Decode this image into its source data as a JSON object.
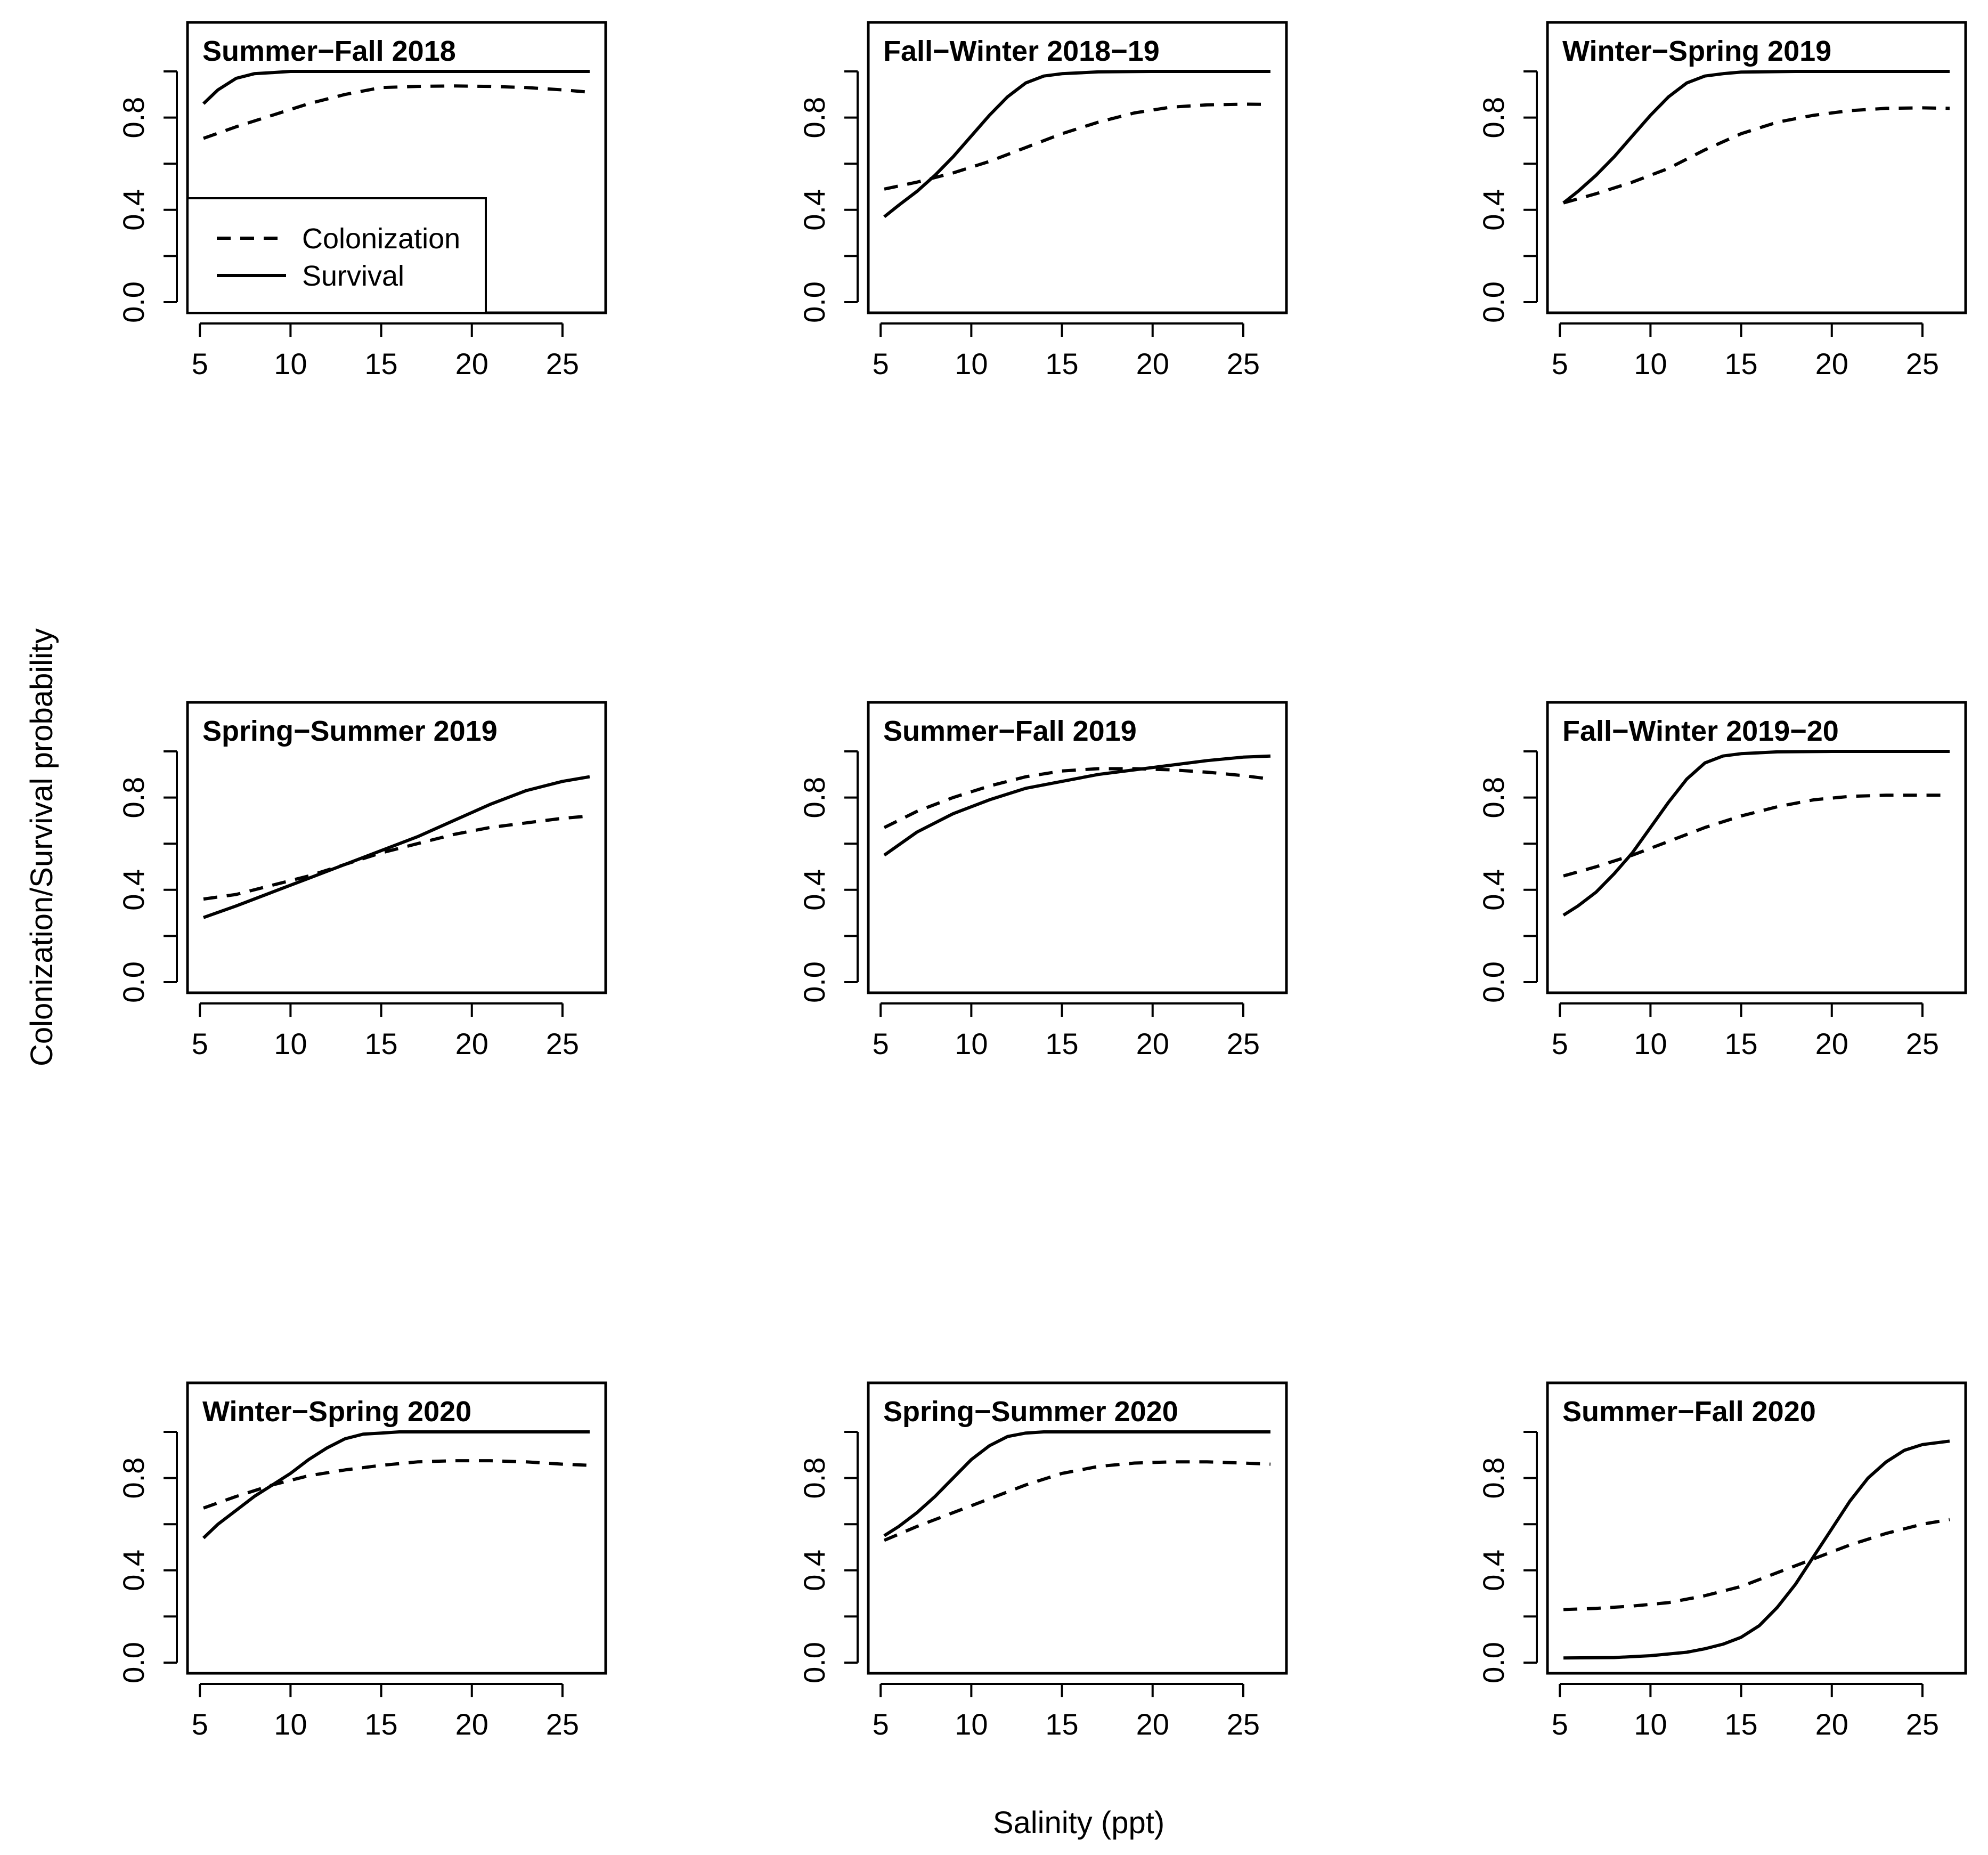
{
  "figure": {
    "xlabel": "Salinity (ppt)",
    "ylabel": "Colonization/Survival probability"
  },
  "legend": {
    "entries": [
      {
        "label": "Colonization",
        "style": "dashed"
      },
      {
        "label": "Survival",
        "style": "solid"
      }
    ]
  },
  "colors": {
    "line": "#000000",
    "background": "#ffffff"
  },
  "chart_data": [
    {
      "type": "line",
      "title": "Summer−Fall 2018",
      "xlabel": "",
      "ylabel": "",
      "xlim": [
        5.2,
        26.5
      ],
      "ylim": [
        0,
        1
      ],
      "xticks": [
        "5",
        "10",
        "15",
        "20",
        "25"
      ],
      "yticks": [
        "0.0",
        "0.4",
        "0.8"
      ],
      "grid": false,
      "legend": "bottom-left",
      "series": [
        {
          "name": "Colonization",
          "style": "dashed",
          "x": [
            5.2,
            7,
            9,
            11,
            13,
            15,
            17,
            19,
            21,
            23,
            25,
            26.5
          ],
          "y": [
            0.71,
            0.76,
            0.81,
            0.86,
            0.9,
            0.93,
            0.935,
            0.937,
            0.935,
            0.93,
            0.92,
            0.91
          ]
        },
        {
          "name": "Survival",
          "style": "solid",
          "x": [
            5.2,
            6,
            7,
            8,
            9,
            10,
            12,
            15,
            20,
            26.5
          ],
          "y": [
            0.86,
            0.92,
            0.97,
            0.99,
            0.995,
            1.0,
            1.0,
            1.0,
            1.0,
            1.0
          ]
        }
      ]
    },
    {
      "type": "line",
      "title": "Fall−Winter 2018−19",
      "xlabel": "",
      "ylabel": "",
      "xlim": [
        5.2,
        26.5
      ],
      "ylim": [
        0,
        1
      ],
      "xticks": [
        "5",
        "10",
        "15",
        "20",
        "25"
      ],
      "yticks": [
        "0.0",
        "0.4",
        "0.8"
      ],
      "grid": false,
      "series": [
        {
          "name": "Colonization",
          "style": "dashed",
          "x": [
            5.2,
            7,
            9,
            11,
            13,
            15,
            17,
            19,
            21,
            23,
            25,
            26.5
          ],
          "y": [
            0.49,
            0.52,
            0.56,
            0.61,
            0.67,
            0.73,
            0.78,
            0.82,
            0.845,
            0.855,
            0.858,
            0.857
          ]
        },
        {
          "name": "Survival",
          "style": "solid",
          "x": [
            5.2,
            6,
            7,
            8,
            9,
            10,
            11,
            12,
            13,
            14,
            15,
            17,
            20,
            26.5
          ],
          "y": [
            0.37,
            0.42,
            0.48,
            0.55,
            0.63,
            0.72,
            0.81,
            0.89,
            0.95,
            0.98,
            0.99,
            0.998,
            1.0,
            1.0
          ]
        }
      ]
    },
    {
      "type": "line",
      "title": "Winter−Spring 2019",
      "xlabel": "",
      "ylabel": "",
      "xlim": [
        5.2,
        26.5
      ],
      "ylim": [
        0,
        1
      ],
      "xticks": [
        "5",
        "10",
        "15",
        "20",
        "25"
      ],
      "yticks": [
        "0.0",
        "0.4",
        "0.8"
      ],
      "grid": false,
      "series": [
        {
          "name": "Colonization",
          "style": "dashed",
          "x": [
            5.2,
            7,
            9,
            11,
            13,
            15,
            17,
            19,
            21,
            23,
            25,
            26.5
          ],
          "y": [
            0.43,
            0.47,
            0.52,
            0.58,
            0.66,
            0.73,
            0.78,
            0.81,
            0.83,
            0.84,
            0.842,
            0.84
          ]
        },
        {
          "name": "Survival",
          "style": "solid",
          "x": [
            5.2,
            6,
            7,
            8,
            9,
            10,
            11,
            12,
            13,
            14,
            15,
            18,
            22,
            26.5
          ],
          "y": [
            0.43,
            0.48,
            0.55,
            0.63,
            0.72,
            0.81,
            0.89,
            0.95,
            0.98,
            0.99,
            0.997,
            1.0,
            1.0,
            1.0
          ]
        }
      ]
    },
    {
      "type": "line",
      "title": "Spring−Summer 2019",
      "xlabel": "",
      "ylabel": "",
      "xlim": [
        5.2,
        26.5
      ],
      "ylim": [
        0,
        1
      ],
      "xticks": [
        "5",
        "10",
        "15",
        "20",
        "25"
      ],
      "yticks": [
        "0.0",
        "0.4",
        "0.8"
      ],
      "grid": false,
      "series": [
        {
          "name": "Colonization",
          "style": "dashed",
          "x": [
            5.2,
            7,
            9,
            11,
            13,
            15,
            17,
            19,
            21,
            23,
            25,
            26.5
          ],
          "y": [
            0.36,
            0.38,
            0.42,
            0.46,
            0.51,
            0.56,
            0.6,
            0.64,
            0.67,
            0.69,
            0.71,
            0.72
          ]
        },
        {
          "name": "Survival",
          "style": "solid",
          "x": [
            5.2,
            7,
            9,
            11,
            13,
            15,
            17,
            19,
            21,
            23,
            25,
            26.5
          ],
          "y": [
            0.28,
            0.33,
            0.39,
            0.45,
            0.51,
            0.57,
            0.63,
            0.7,
            0.77,
            0.83,
            0.87,
            0.89
          ]
        }
      ]
    },
    {
      "type": "line",
      "title": "Summer−Fall 2019",
      "xlabel": "",
      "ylabel": "",
      "xlim": [
        5.2,
        26.5
      ],
      "ylim": [
        0,
        1
      ],
      "xticks": [
        "5",
        "10",
        "15",
        "20",
        "25"
      ],
      "yticks": [
        "0.0",
        "0.4",
        "0.8"
      ],
      "grid": false,
      "series": [
        {
          "name": "Colonization",
          "style": "dashed",
          "x": [
            5.2,
            7,
            9,
            11,
            13,
            15,
            17,
            19,
            21,
            23,
            25,
            26.5
          ],
          "y": [
            0.67,
            0.74,
            0.8,
            0.85,
            0.89,
            0.915,
            0.925,
            0.925,
            0.92,
            0.91,
            0.895,
            0.88
          ]
        },
        {
          "name": "Survival",
          "style": "solid",
          "x": [
            5.2,
            7,
            9,
            11,
            13,
            15,
            17,
            19,
            21,
            23,
            25,
            26.5
          ],
          "y": [
            0.55,
            0.65,
            0.73,
            0.79,
            0.84,
            0.87,
            0.9,
            0.92,
            0.94,
            0.96,
            0.975,
            0.98
          ]
        }
      ]
    },
    {
      "type": "line",
      "title": "Fall−Winter 2019−20",
      "xlabel": "",
      "ylabel": "",
      "xlim": [
        5.2,
        26.5
      ],
      "ylim": [
        0,
        1
      ],
      "xticks": [
        "5",
        "10",
        "15",
        "20",
        "25"
      ],
      "yticks": [
        "0.0",
        "0.4",
        "0.8"
      ],
      "grid": false,
      "series": [
        {
          "name": "Colonization",
          "style": "dashed",
          "x": [
            5.2,
            7,
            9,
            11,
            13,
            15,
            17,
            19,
            21,
            23,
            25,
            26.5
          ],
          "y": [
            0.46,
            0.5,
            0.55,
            0.61,
            0.67,
            0.72,
            0.76,
            0.79,
            0.805,
            0.81,
            0.81,
            0.81
          ]
        },
        {
          "name": "Survival",
          "style": "solid",
          "x": [
            5.2,
            6,
            7,
            8,
            9,
            10,
            11,
            12,
            13,
            14,
            15,
            17,
            20,
            26.5
          ],
          "y": [
            0.29,
            0.33,
            0.39,
            0.47,
            0.56,
            0.67,
            0.78,
            0.88,
            0.95,
            0.98,
            0.99,
            0.998,
            1.0,
            1.0
          ]
        }
      ]
    },
    {
      "type": "line",
      "title": "Winter−Spring 2020",
      "xlabel": "",
      "ylabel": "",
      "xlim": [
        5.2,
        26.5
      ],
      "ylim": [
        0,
        1
      ],
      "xticks": [
        "5",
        "10",
        "15",
        "20",
        "25"
      ],
      "yticks": [
        "0.0",
        "0.4",
        "0.8"
      ],
      "grid": false,
      "series": [
        {
          "name": "Colonization",
          "style": "dashed",
          "x": [
            5.2,
            7,
            9,
            11,
            13,
            15,
            17,
            19,
            21,
            23,
            25,
            26.5
          ],
          "y": [
            0.67,
            0.72,
            0.77,
            0.81,
            0.835,
            0.855,
            0.87,
            0.875,
            0.875,
            0.87,
            0.86,
            0.855
          ]
        },
        {
          "name": "Survival",
          "style": "solid",
          "x": [
            5.2,
            6,
            7,
            8,
            9,
            10,
            11,
            12,
            13,
            14,
            15,
            16,
            18,
            22,
            26.5
          ],
          "y": [
            0.54,
            0.6,
            0.66,
            0.72,
            0.77,
            0.82,
            0.88,
            0.93,
            0.97,
            0.99,
            0.995,
            1.0,
            1.0,
            1.0,
            1.0
          ]
        }
      ]
    },
    {
      "type": "line",
      "title": "Spring−Summer 2020",
      "xlabel": "",
      "ylabel": "",
      "xlim": [
        5.2,
        26.5
      ],
      "ylim": [
        0,
        1
      ],
      "xticks": [
        "5",
        "10",
        "15",
        "20",
        "25"
      ],
      "yticks": [
        "0.0",
        "0.4",
        "0.8"
      ],
      "grid": false,
      "series": [
        {
          "name": "Colonization",
          "style": "dashed",
          "x": [
            5.2,
            7,
            9,
            11,
            13,
            15,
            17,
            19,
            21,
            23,
            25,
            26.5
          ],
          "y": [
            0.53,
            0.59,
            0.65,
            0.71,
            0.77,
            0.82,
            0.85,
            0.865,
            0.87,
            0.87,
            0.865,
            0.86
          ]
        },
        {
          "name": "Survival",
          "style": "solid",
          "x": [
            5.2,
            6,
            7,
            8,
            9,
            10,
            11,
            12,
            13,
            14,
            16,
            20,
            26.5
          ],
          "y": [
            0.55,
            0.59,
            0.65,
            0.72,
            0.8,
            0.88,
            0.94,
            0.98,
            0.995,
            1.0,
            1.0,
            1.0,
            1.0
          ]
        }
      ]
    },
    {
      "type": "line",
      "title": "Summer−Fall 2020",
      "xlabel": "",
      "ylabel": "",
      "xlim": [
        5.2,
        26.5
      ],
      "ylim": [
        0,
        1
      ],
      "xticks": [
        "5",
        "10",
        "15",
        "20",
        "25"
      ],
      "yticks": [
        "0.0",
        "0.4",
        "0.8"
      ],
      "grid": false,
      "series": [
        {
          "name": "Colonization",
          "style": "dashed",
          "x": [
            5.2,
            7,
            9,
            11,
            13,
            15,
            17,
            19,
            21,
            23,
            25,
            26.5
          ],
          "y": [
            0.23,
            0.235,
            0.245,
            0.26,
            0.29,
            0.33,
            0.39,
            0.45,
            0.51,
            0.56,
            0.6,
            0.62
          ]
        },
        {
          "name": "Survival",
          "style": "solid",
          "x": [
            5.2,
            8,
            10,
            12,
            13,
            14,
            15,
            16,
            17,
            18,
            19,
            20,
            21,
            22,
            23,
            24,
            25,
            26.5
          ],
          "y": [
            0.02,
            0.022,
            0.03,
            0.045,
            0.06,
            0.08,
            0.11,
            0.16,
            0.24,
            0.34,
            0.46,
            0.58,
            0.7,
            0.8,
            0.87,
            0.92,
            0.945,
            0.96
          ]
        }
      ]
    }
  ]
}
